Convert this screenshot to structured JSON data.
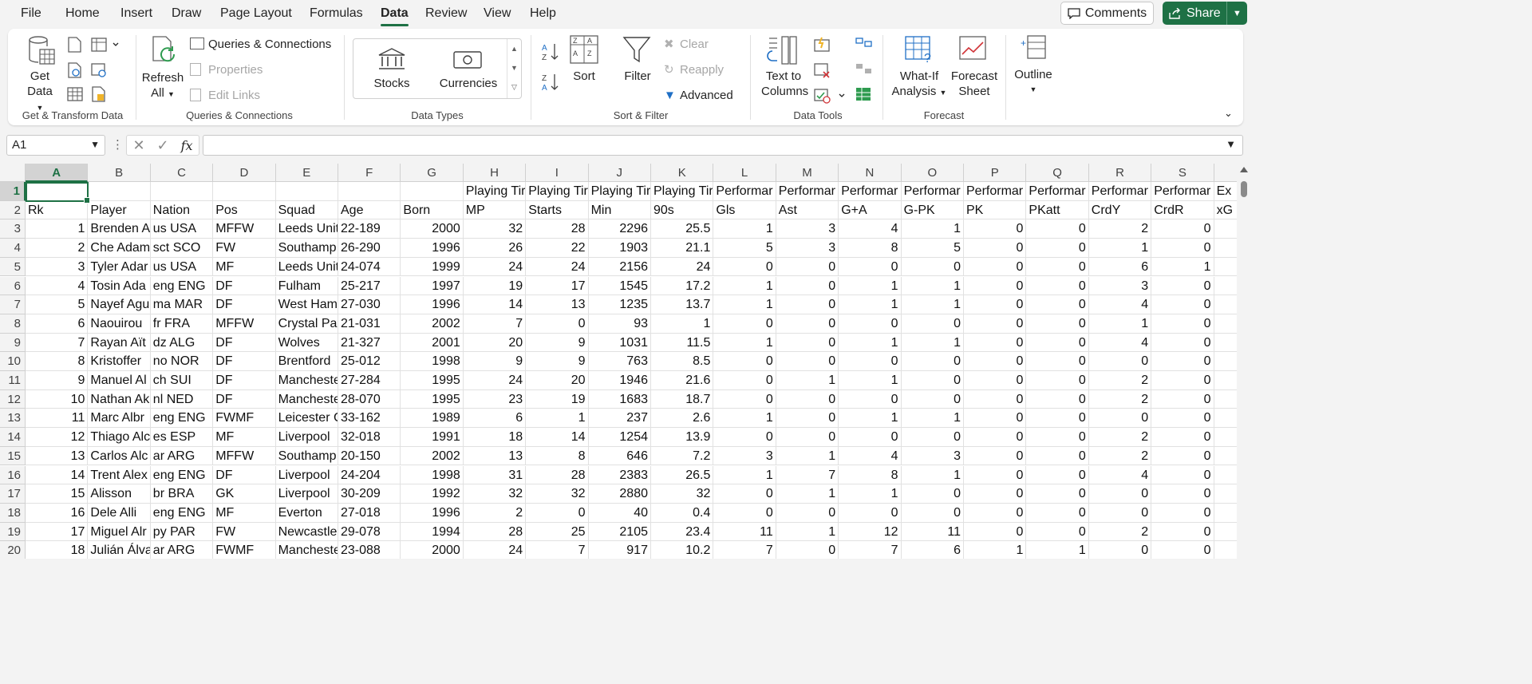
{
  "menu": {
    "tabs": [
      "File",
      "Home",
      "Insert",
      "Draw",
      "Page Layout",
      "Formulas",
      "Data",
      "Review",
      "View",
      "Help"
    ],
    "active": "Data",
    "comments_label": "Comments",
    "share_label": "Share"
  },
  "ribbon": {
    "get_data": [
      "Get",
      "Data"
    ],
    "refresh_all": [
      "Refresh",
      "All"
    ],
    "queries_connections": "Queries & Connections",
    "properties": "Properties",
    "edit_links": "Edit Links",
    "stocks": "Stocks",
    "currencies": "Currencies",
    "sort": "Sort",
    "filter": "Filter",
    "clear": "Clear",
    "reapply": "Reapply",
    "advanced": "Advanced",
    "text_to_columns": [
      "Text to",
      "Columns"
    ],
    "what_if": [
      "What-If",
      "Analysis"
    ],
    "forecast_sheet": [
      "Forecast",
      "Sheet"
    ],
    "outline": "Outline",
    "groups": {
      "get_transform": "Get & Transform Data",
      "queries": "Queries & Connections",
      "data_types": "Data Types",
      "sort_filter": "Sort & Filter",
      "data_tools": "Data Tools",
      "forecast": "Forecast"
    }
  },
  "formula_bar": {
    "name_box": "A1",
    "fx": "fx",
    "value": ""
  },
  "sheet": {
    "columns": [
      "A",
      "B",
      "C",
      "D",
      "E",
      "F",
      "G",
      "H",
      "I",
      "J",
      "K",
      "L",
      "M",
      "N",
      "O",
      "P",
      "Q",
      "R",
      "S"
    ],
    "partial_column": "Ex",
    "rows": [
      [
        "",
        "",
        "",
        "",
        "",
        "",
        "",
        "Playing Tir",
        "Playing Tir",
        "Playing Tir",
        "Playing Tir",
        "Performar",
        "Performar",
        "Performar",
        "Performar",
        "Performar",
        "Performar",
        "Performar",
        "Performar",
        "Ex"
      ],
      [
        "Rk",
        "Player",
        "Nation",
        "Pos",
        "Squad",
        "Age",
        "Born",
        "MP",
        "Starts",
        "Min",
        "90s",
        "Gls",
        "Ast",
        "G+A",
        "G-PK",
        "PK",
        "PKatt",
        "CrdY",
        "CrdR",
        "xG"
      ],
      [
        "1",
        "Brenden A",
        "us USA",
        "MFFW",
        "Leeds Unit",
        "22-189",
        "2000",
        "32",
        "28",
        "2296",
        "25.5",
        "1",
        "3",
        "4",
        "1",
        "0",
        "0",
        "2",
        "0",
        ""
      ],
      [
        "2",
        "Che Adam",
        "sct SCO",
        "FW",
        "Southamp",
        "26-290",
        "1996",
        "26",
        "22",
        "1903",
        "21.1",
        "5",
        "3",
        "8",
        "5",
        "0",
        "0",
        "1",
        "0",
        ""
      ],
      [
        "3",
        "Tyler Adar",
        "us USA",
        "MF",
        "Leeds Unit",
        "24-074",
        "1999",
        "24",
        "24",
        "2156",
        "24",
        "0",
        "0",
        "0",
        "0",
        "0",
        "0",
        "6",
        "1",
        ""
      ],
      [
        "4",
        "Tosin Ada",
        "eng ENG",
        "DF",
        "Fulham",
        "25-217",
        "1997",
        "19",
        "17",
        "1545",
        "17.2",
        "1",
        "0",
        "1",
        "1",
        "0",
        "0",
        "3",
        "0",
        ""
      ],
      [
        "5",
        "Nayef Agu",
        "ma MAR",
        "DF",
        "West Ham",
        "27-030",
        "1996",
        "14",
        "13",
        "1235",
        "13.7",
        "1",
        "0",
        "1",
        "1",
        "0",
        "0",
        "4",
        "0",
        ""
      ],
      [
        "6",
        "Naouirou",
        "fr FRA",
        "MFFW",
        "Crystal Pal",
        "21-031",
        "2002",
        "7",
        "0",
        "93",
        "1",
        "0",
        "0",
        "0",
        "0",
        "0",
        "0",
        "1",
        "0",
        ""
      ],
      [
        "7",
        "Rayan Aït",
        "dz ALG",
        "DF",
        "Wolves",
        "21-327",
        "2001",
        "20",
        "9",
        "1031",
        "11.5",
        "1",
        "0",
        "1",
        "1",
        "0",
        "0",
        "4",
        "0",
        ""
      ],
      [
        "8",
        "Kristoffer",
        "no NOR",
        "DF",
        "Brentford",
        "25-012",
        "1998",
        "9",
        "9",
        "763",
        "8.5",
        "0",
        "0",
        "0",
        "0",
        "0",
        "0",
        "0",
        "0",
        ""
      ],
      [
        "9",
        "Manuel Al",
        "ch SUI",
        "DF",
        "Mancheste",
        "27-284",
        "1995",
        "24",
        "20",
        "1946",
        "21.6",
        "0",
        "1",
        "1",
        "0",
        "0",
        "0",
        "2",
        "0",
        ""
      ],
      [
        "10",
        "Nathan Ak",
        "nl NED",
        "DF",
        "Mancheste",
        "28-070",
        "1995",
        "23",
        "19",
        "1683",
        "18.7",
        "0",
        "0",
        "0",
        "0",
        "0",
        "0",
        "2",
        "0",
        ""
      ],
      [
        "11",
        "Marc Albr",
        "eng ENG",
        "FWMF",
        "Leicester C",
        "33-162",
        "1989",
        "6",
        "1",
        "237",
        "2.6",
        "1",
        "0",
        "1",
        "1",
        "0",
        "0",
        "0",
        "0",
        ""
      ],
      [
        "12",
        "Thiago Alc",
        "es ESP",
        "MF",
        "Liverpool",
        "32-018",
        "1991",
        "18",
        "14",
        "1254",
        "13.9",
        "0",
        "0",
        "0",
        "0",
        "0",
        "0",
        "2",
        "0",
        ""
      ],
      [
        "13",
        "Carlos Alc",
        "ar ARG",
        "MFFW",
        "Southamp",
        "20-150",
        "2002",
        "13",
        "8",
        "646",
        "7.2",
        "3",
        "1",
        "4",
        "3",
        "0",
        "0",
        "2",
        "0",
        ""
      ],
      [
        "14",
        "Trent Alex",
        "eng ENG",
        "DF",
        "Liverpool",
        "24-204",
        "1998",
        "31",
        "28",
        "2383",
        "26.5",
        "1",
        "7",
        "8",
        "1",
        "0",
        "0",
        "4",
        "0",
        ""
      ],
      [
        "15",
        "Alisson",
        "br BRA",
        "GK",
        "Liverpool",
        "30-209",
        "1992",
        "32",
        "32",
        "2880",
        "32",
        "0",
        "1",
        "1",
        "0",
        "0",
        "0",
        "0",
        "0",
        ""
      ],
      [
        "16",
        "Dele Alli",
        "eng ENG",
        "MF",
        "Everton",
        "27-018",
        "1996",
        "2",
        "0",
        "40",
        "0.4",
        "0",
        "0",
        "0",
        "0",
        "0",
        "0",
        "0",
        "0",
        ""
      ],
      [
        "17",
        "Miguel Alr",
        "py PAR",
        "FW",
        "Newcastle",
        "29-078",
        "1994",
        "28",
        "25",
        "2105",
        "23.4",
        "11",
        "1",
        "12",
        "11",
        "0",
        "0",
        "2",
        "0",
        ""
      ],
      [
        "18",
        "Julián Álva",
        "ar ARG",
        "FWMF",
        "Mancheste",
        "23-088",
        "2000",
        "24",
        "7",
        "917",
        "10.2",
        "7",
        "0",
        "7",
        "6",
        "1",
        "1",
        "0",
        "0",
        ""
      ]
    ]
  },
  "colors": {
    "accent": "#1e7145",
    "gridline": "#e1e1e1"
  }
}
